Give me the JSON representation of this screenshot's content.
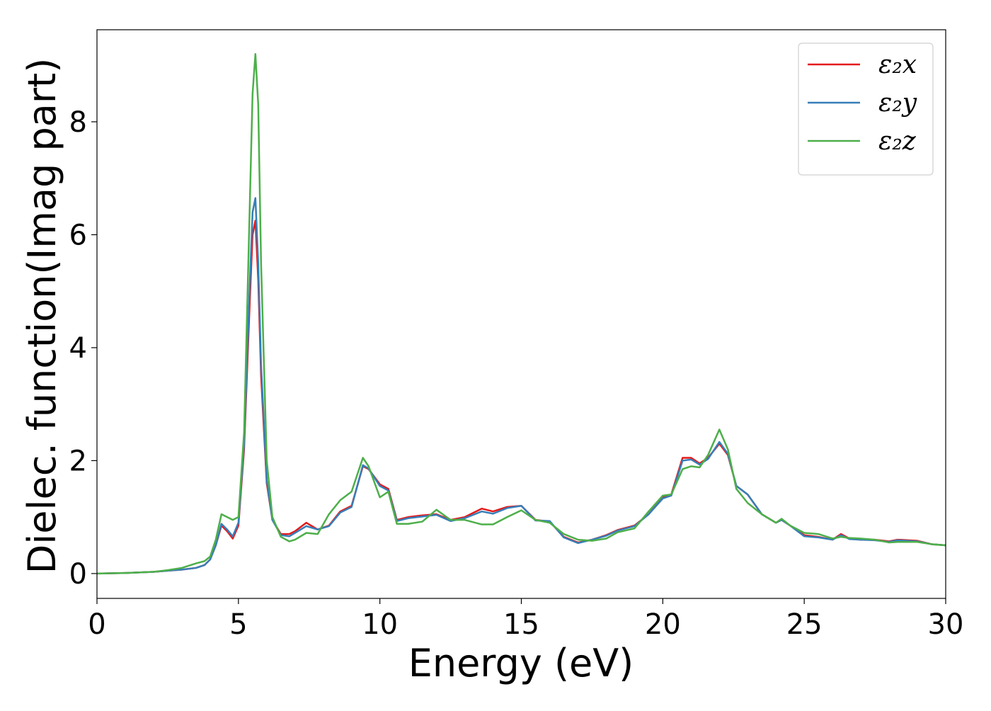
{
  "chart_data": {
    "type": "line",
    "x_label": "Energy (eV)",
    "y_label": "Dielec. function(Imag part)",
    "x": [
      0,
      1,
      2,
      2.5,
      3,
      3.5,
      3.8,
      4.0,
      4.2,
      4.4,
      4.6,
      4.8,
      5.0,
      5.2,
      5.4,
      5.5,
      5.6,
      5.7,
      5.8,
      6.0,
      6.2,
      6.5,
      6.8,
      7.0,
      7.4,
      7.8,
      8.2,
      8.6,
      9.0,
      9.4,
      9.6,
      10.0,
      10.3,
      10.6,
      11.0,
      11.5,
      12.0,
      12.5,
      13.0,
      13.6,
      14.0,
      14.5,
      15.0,
      15.5,
      16.0,
      16.5,
      17.0,
      17.5,
      18.0,
      18.4,
      19.0,
      19.5,
      20.0,
      20.3,
      20.7,
      21.0,
      21.3,
      21.6,
      22.0,
      22.3,
      22.6,
      23.0,
      23.5,
      24.0,
      24.2,
      24.5,
      25.0,
      25.5,
      26.0,
      26.3,
      26.6,
      27.0,
      27.5,
      28.0,
      28.3,
      29.0,
      29.5,
      30.0
    ],
    "series": [
      {
        "name": "ε₂x",
        "color": "#e41a1c",
        "values": [
          0,
          0.01,
          0.03,
          0.05,
          0.07,
          0.1,
          0.15,
          0.25,
          0.5,
          0.85,
          0.75,
          0.62,
          0.85,
          2.2,
          4.8,
          6.0,
          6.25,
          5.2,
          3.5,
          1.6,
          0.95,
          0.7,
          0.7,
          0.75,
          0.9,
          0.78,
          0.85,
          1.1,
          1.2,
          1.9,
          1.85,
          1.58,
          1.5,
          0.95,
          1.0,
          1.03,
          1.05,
          0.95,
          1.0,
          1.15,
          1.1,
          1.18,
          1.2,
          0.95,
          0.92,
          0.65,
          0.55,
          0.6,
          0.68,
          0.77,
          0.85,
          1.05,
          1.35,
          1.4,
          2.05,
          2.05,
          1.95,
          2.05,
          2.3,
          2.1,
          1.55,
          1.4,
          1.05,
          0.9,
          0.95,
          0.85,
          0.68,
          0.65,
          0.6,
          0.7,
          0.62,
          0.6,
          0.6,
          0.57,
          0.6,
          0.58,
          0.52,
          0.5
        ]
      },
      {
        "name": "ε₂y",
        "color": "#377eb8",
        "values": [
          0,
          0.01,
          0.03,
          0.05,
          0.07,
          0.1,
          0.15,
          0.25,
          0.5,
          0.88,
          0.78,
          0.66,
          0.9,
          2.3,
          5.1,
          6.4,
          6.65,
          5.5,
          3.7,
          1.65,
          0.95,
          0.68,
          0.66,
          0.72,
          0.84,
          0.78,
          0.84,
          1.08,
          1.18,
          1.92,
          1.86,
          1.55,
          1.47,
          0.93,
          0.98,
          1.01,
          1.04,
          0.93,
          0.98,
          1.1,
          1.06,
          1.16,
          1.2,
          0.94,
          0.93,
          0.64,
          0.54,
          0.6,
          0.67,
          0.76,
          0.84,
          1.05,
          1.33,
          1.38,
          2.0,
          2.02,
          1.93,
          2.03,
          2.33,
          2.12,
          1.55,
          1.4,
          1.05,
          0.9,
          0.95,
          0.85,
          0.66,
          0.64,
          0.6,
          0.68,
          0.61,
          0.6,
          0.59,
          0.56,
          0.59,
          0.57,
          0.52,
          0.5
        ]
      },
      {
        "name": "ε₂z",
        "color": "#4daf4a",
        "values": [
          0,
          0.01,
          0.03,
          0.06,
          0.1,
          0.18,
          0.22,
          0.3,
          0.6,
          1.05,
          1.0,
          0.95,
          1.0,
          2.5,
          6.5,
          8.5,
          9.2,
          8.3,
          5.5,
          2.0,
          1.0,
          0.65,
          0.57,
          0.6,
          0.72,
          0.7,
          1.05,
          1.3,
          1.45,
          2.05,
          1.9,
          1.35,
          1.45,
          0.88,
          0.88,
          0.92,
          1.13,
          0.95,
          0.95,
          0.87,
          0.87,
          1.0,
          1.12,
          0.95,
          0.9,
          0.7,
          0.6,
          0.58,
          0.62,
          0.73,
          0.8,
          1.1,
          1.38,
          1.4,
          1.85,
          1.9,
          1.88,
          2.1,
          2.55,
          2.2,
          1.5,
          1.25,
          1.05,
          0.9,
          0.97,
          0.85,
          0.72,
          0.7,
          0.62,
          0.65,
          0.63,
          0.62,
          0.6,
          0.55,
          0.56,
          0.56,
          0.52,
          0.5
        ]
      }
    ],
    "xlim": [
      0,
      30
    ],
    "ylim": [
      -0.44,
      9.63
    ],
    "xticks": [
      0,
      5,
      10,
      15,
      20,
      25,
      30
    ],
    "yticks": [
      0,
      2,
      4,
      6,
      8
    ],
    "legend": "upper right"
  }
}
